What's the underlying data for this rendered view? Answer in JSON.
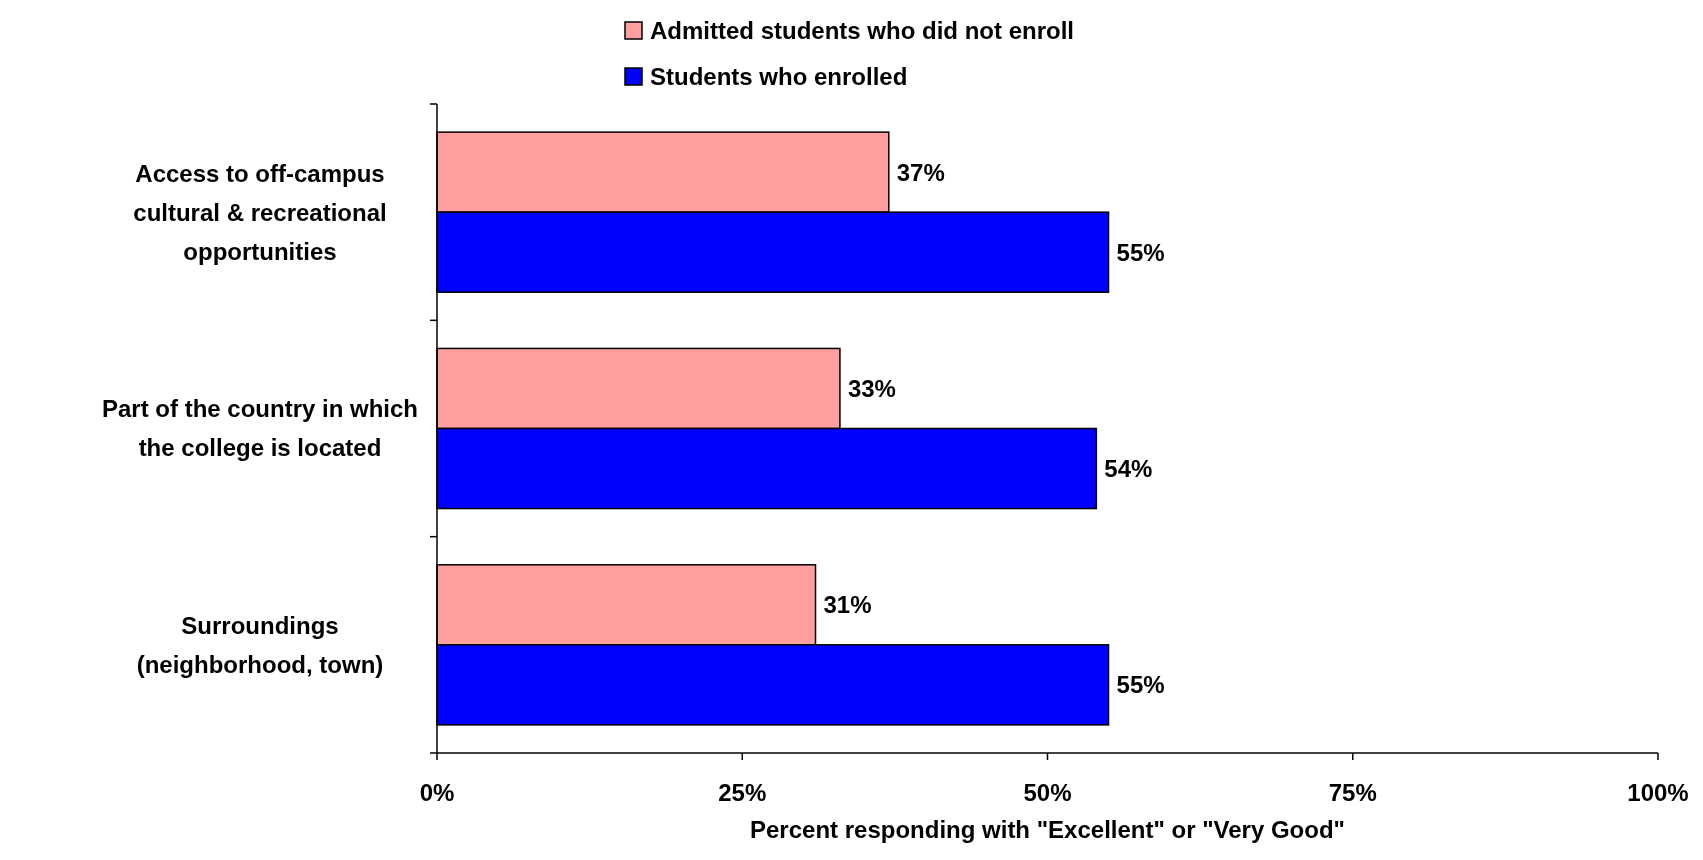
{
  "chart_data": {
    "type": "bar",
    "orientation": "horizontal",
    "xlabel": "Percent responding with \"Excellent\" or \"Very Good\"",
    "categories": [
      "Access to off-campus\ncultural & recreational\nopportunities",
      "Part of the country in which\nthe college is located",
      "Surroundings\n(neighborhood, town)"
    ],
    "series": [
      {
        "name": "Admitted students who did not enroll",
        "color": "#ff9f9f",
        "values": [
          37,
          33,
          31
        ],
        "value_labels": [
          "37%",
          "33%",
          "31%"
        ]
      },
      {
        "name": "Students who enrolled",
        "color": "#0000ff",
        "values": [
          55,
          54,
          55
        ],
        "value_labels": [
          "55%",
          "54%",
          "55%"
        ]
      }
    ],
    "xlim": [
      0,
      100
    ],
    "xticks": [
      {
        "value": 0,
        "label": "0%"
      },
      {
        "value": 25,
        "label": "25%"
      },
      {
        "value": 50,
        "label": "50%"
      },
      {
        "value": 75,
        "label": "75%"
      },
      {
        "value": 100,
        "label": "100%"
      }
    ],
    "grid": false,
    "legend": "top"
  }
}
